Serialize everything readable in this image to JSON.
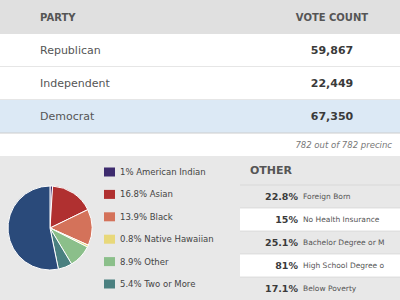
{
  "chart_data": [
    {
      "type": "table",
      "x_label": "PARTY",
      "y_label": "VOTE COUNT",
      "categories": [
        "Republican",
        "Independent",
        "Democrat"
      ],
      "values": [
        59867,
        22449,
        67350
      ],
      "value_labels": [
        "59,867",
        "22,449",
        "67,350"
      ],
      "colors": [
        "#ffffff",
        "#ffffff",
        "#dce9f5"
      ],
      "data_labels": true,
      "annotations": [
        "782 out of 782 precinc"
      ]
    },
    {
      "type": "pie",
      "categories": [
        "1% American Indian",
        "16.8% Asian",
        "13.9% Black",
        "0.8% Native Hawaiian",
        "8.9% Other",
        "5.4% Two or More",
        null
      ],
      "values": [
        1.0,
        16.8,
        13.9,
        0.8,
        8.9,
        5.4,
        53.2
      ],
      "colors": [
        "#3d2b6e",
        "#b03030",
        "#d4725a",
        "#e8d87a",
        "#8bbf8a",
        "#4a8080",
        "#2a4a7a"
      ],
      "legend": "right"
    },
    {
      "type": "table",
      "title": "OTHER",
      "categories": [
        "Foreign Born",
        "No Health Insurance",
        "Bachelor Degree or M",
        "High School Degree o",
        "Below Poverty"
      ],
      "values": [
        22.8,
        15,
        25.1,
        81,
        17.1
      ],
      "value_labels": [
        "22.8%",
        "15%",
        "25.1%",
        "81%",
        "17.1%"
      ],
      "data_labels": true
    }
  ]
}
